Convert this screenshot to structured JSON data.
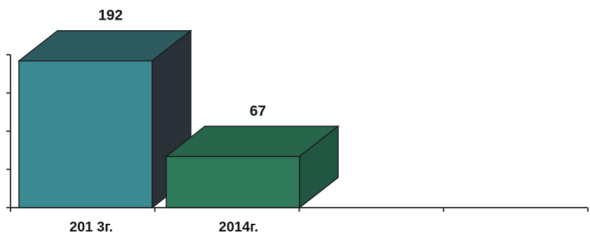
{
  "chart_data": {
    "type": "bar",
    "style": "3d",
    "categories": [
      "201 3г.",
      "2014г."
    ],
    "values": [
      192,
      67
    ],
    "ylim": [
      0,
      200
    ],
    "y_ticks_labeled": false,
    "grid": false,
    "legend": "none",
    "colors": {
      "front": [
        "#3b8a92",
        "#2f7a5a"
      ],
      "top": [
        "#2e5b60",
        "#27664a"
      ],
      "side": [
        "#2a3138",
        "#205642"
      ],
      "axis": "#333333"
    }
  }
}
